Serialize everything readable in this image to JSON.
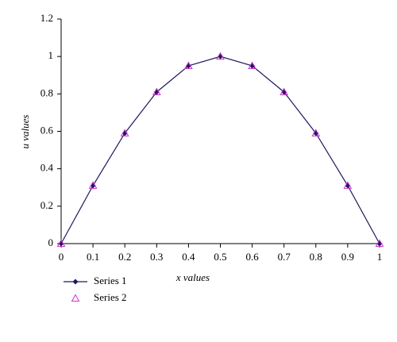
{
  "chart_data": {
    "type": "line",
    "x_label": "x values",
    "y_label": "u values",
    "x": [
      0,
      0.1,
      0.2,
      0.3,
      0.4,
      0.5,
      0.6,
      0.7,
      0.8,
      0.9,
      1
    ],
    "series": [
      {
        "name": "Series 1",
        "color": "#1a1a5e",
        "marker": "diamond",
        "line": true,
        "values": [
          0,
          0.31,
          0.59,
          0.81,
          0.95,
          1,
          0.95,
          0.81,
          0.59,
          0.31,
          0
        ]
      },
      {
        "name": "Series 2",
        "color": "#cc33cc",
        "marker": "triangle",
        "line": false,
        "values": [
          0,
          0.31,
          0.59,
          0.81,
          0.95,
          1,
          0.95,
          0.81,
          0.59,
          0.31,
          0
        ]
      }
    ],
    "xlim": [
      0,
      1
    ],
    "xticks": [
      0,
      0.1,
      0.2,
      0.3,
      0.4,
      0.5,
      0.6,
      0.7,
      0.8,
      0.9,
      1
    ],
    "ylim": [
      0,
      1.2
    ],
    "yticks": [
      0,
      0.2,
      0.4,
      0.6,
      0.8,
      1,
      1.2
    ],
    "grid": false,
    "legend": "bottom-left"
  }
}
